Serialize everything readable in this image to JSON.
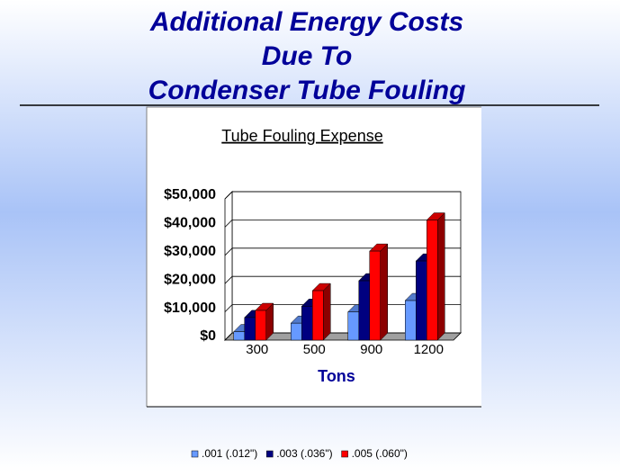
{
  "header": {
    "title_lines": [
      "Additional Energy Costs",
      "Due To",
      "Condenser Tube Fouling"
    ]
  },
  "chart_data": {
    "type": "bar3d",
    "title": "Tube Fouling Expense",
    "x_label": "Tons",
    "categories": [
      "300",
      "500",
      "900",
      "1200"
    ],
    "series": [
      {
        "name": ".001 (.012\")",
        "color": "#6699ff",
        "values": [
          3000,
          6000,
          10000,
          14000
        ]
      },
      {
        "name": ".003 (.036\")",
        "color": "#000080",
        "values": [
          8000,
          12000,
          21000,
          28000
        ]
      },
      {
        "name": ".005 (.060\")",
        "color": "#ff0000",
        "values": [
          10500,
          17500,
          31500,
          42500
        ]
      }
    ],
    "ylim": [
      0,
      50000
    ],
    "yticks": [
      {
        "value": 0,
        "label": "$0"
      },
      {
        "value": 10000,
        "label": "$10,000"
      },
      {
        "value": 20000,
        "label": "$20,000"
      },
      {
        "value": 30000,
        "label": "$30,000"
      },
      {
        "value": 40000,
        "label": "$40,000"
      },
      {
        "value": 50000,
        "label": "$50,000"
      }
    ],
    "grid": true,
    "legend": "bottom"
  }
}
